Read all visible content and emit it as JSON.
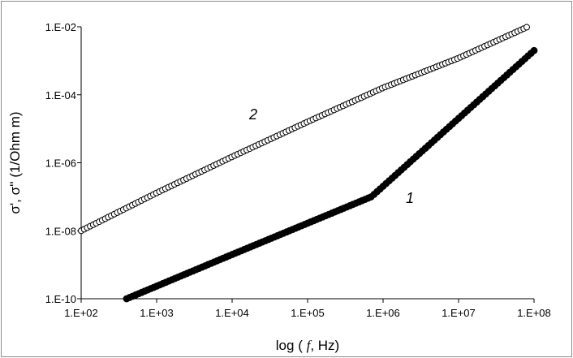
{
  "chart_data": {
    "type": "scatter",
    "title": "",
    "xlabel": "log ( f, Hz)",
    "xlabel_parts": {
      "prefix": "log ( ",
      "italic": "f",
      "suffix": ", Hz)"
    },
    "ylabel": "σ', σ'' (1/Ohm m)",
    "x_scale": "log",
    "y_scale": "log",
    "xlim": [
      100,
      100000000
    ],
    "ylim": [
      1e-10,
      0.01
    ],
    "x_ticks": [
      100,
      1000,
      10000,
      100000,
      1000000,
      10000000,
      100000000
    ],
    "x_tick_labels": [
      "1.E+02",
      "1.E+03",
      "1.E+04",
      "1.E+05",
      "1.E+06",
      "1.E+07",
      "1.E+08"
    ],
    "y_ticks": [
      1e-10,
      1e-08,
      1e-06,
      0.0001,
      0.01
    ],
    "y_tick_labels": [
      "1.E-10",
      "1.E-08",
      "1.E-06",
      "1.E-04",
      "1.E-02"
    ],
    "grid": false,
    "legend": "none",
    "series": [
      {
        "name": "1",
        "marker": "filled-circle",
        "color": "#000000",
        "points_per_decade": 25,
        "x_start": 400,
        "x_end": 100000000,
        "knots": [
          [
            400,
            1e-10
          ],
          [
            10000,
            2e-09
          ],
          [
            700000,
            1e-07
          ],
          [
            100000000,
            0.002
          ]
        ]
      },
      {
        "name": "2",
        "marker": "open-circle",
        "color": "#000000",
        "points_per_decade": 25,
        "x_start": 100,
        "x_end": 80000000,
        "knots": [
          [
            100,
            1e-08
          ],
          [
            1000,
            1.3e-07
          ],
          [
            10000,
            1.5e-06
          ],
          [
            100000,
            1.6e-05
          ],
          [
            1000000,
            0.00016
          ],
          [
            10000000,
            0.0012
          ],
          [
            80000000,
            0.0097
          ]
        ]
      }
    ]
  }
}
